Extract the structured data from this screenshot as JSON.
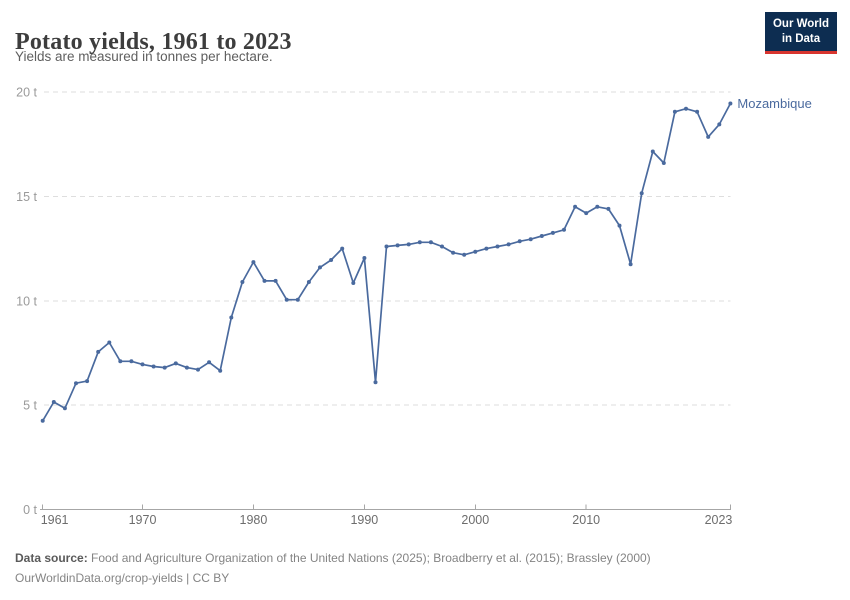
{
  "header": {
    "title": "Potato yields, 1961 to 2023",
    "subtitle": "Yields are measured in tonnes per hectare.",
    "logo": {
      "line1": "Our World",
      "line2": "in Data"
    }
  },
  "chart_data": {
    "type": "line",
    "title": "Potato yields, 1961 to 2023",
    "subtitle": "Yields are measured in tonnes per hectare.",
    "xlabel": "",
    "ylabel": "tonnes per hectare",
    "xlim": [
      1961,
      2023
    ],
    "ylim": [
      0,
      20
    ],
    "x_start": 1961,
    "x_step": 1,
    "x_ticks": [
      1961,
      1970,
      1980,
      1990,
      2000,
      2010,
      2023
    ],
    "y_ticks": [
      0,
      5,
      10,
      15,
      20
    ],
    "y_tick_suffix": " t",
    "grid": "dashed-horizontal",
    "legend_position": "end-of-line-label",
    "series": [
      {
        "name": "Mozambique",
        "color": "#4a6a9e",
        "values": [
          4.25,
          5.15,
          4.85,
          6.05,
          6.15,
          7.55,
          8.0,
          7.1,
          7.1,
          6.95,
          6.85,
          6.8,
          7.0,
          6.8,
          6.7,
          7.05,
          6.65,
          9.2,
          10.9,
          11.85,
          10.95,
          10.95,
          10.05,
          10.05,
          10.9,
          11.6,
          11.95,
          12.5,
          10.85,
          12.05,
          6.1,
          12.6,
          12.65,
          12.7,
          12.8,
          12.8,
          12.6,
          12.3,
          12.2,
          12.35,
          12.5,
          12.6,
          12.7,
          12.85,
          12.95,
          13.1,
          13.25,
          13.4,
          14.5,
          14.2,
          14.5,
          14.4,
          13.6,
          11.75,
          15.15,
          17.15,
          16.6,
          19.05,
          19.2,
          19.05,
          17.85,
          18.45,
          19.45
        ]
      }
    ]
  },
  "colors": {
    "series_blue": "#4a6a9e",
    "grid": "#dedede",
    "axis": "#a6a6a6",
    "x_tick_label": "#6d6d6d",
    "y_tick_label": "#9a9a9a",
    "title_text": "#3d3d3d",
    "logo_background": "#0d2d51",
    "logo_red": "#d8352f",
    "footer_text": "#848484"
  },
  "footer": {
    "datasource_label": "Data source:",
    "datasource_text": " Food and Agriculture Organization of the United Nations (2025); Broadberry et al. (2015); Brassley (2000)",
    "line2": "OurWorldinData.org/crop-yields | CC BY"
  }
}
